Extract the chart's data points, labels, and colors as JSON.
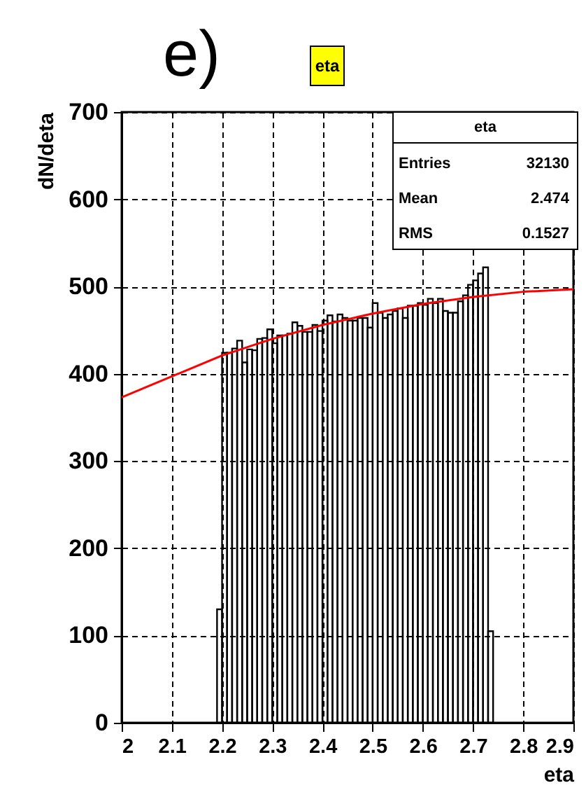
{
  "chart_data": {
    "type": "histogram",
    "title": "eta",
    "xlabel": "eta",
    "ylabel": "dN/deta",
    "annotations": [
      "e)",
      "eta",
      "Entries",
      "32130",
      "Mean",
      "2.474",
      "RMS",
      "0.1527"
    ],
    "xlim": [
      2,
      2.9
    ],
    "ylim": [
      0,
      700
    ],
    "xticks": [
      {
        "value": 2,
        "label": "2"
      },
      2.1,
      2.2,
      2.3,
      2.4,
      2.5,
      2.6,
      2.7,
      2.8,
      2.9
    ],
    "yticks": [
      0,
      100,
      200,
      300,
      400,
      500,
      600,
      700
    ],
    "grid": true,
    "series": [
      {
        "color": "#000000",
        "bins": [
          2.19,
          2.2,
          2.21,
          2.22,
          2.23,
          2.24,
          2.25,
          2.26,
          2.27,
          2.28,
          2.29,
          2.3,
          2.31,
          2.32,
          2.33,
          2.34,
          2.35,
          2.36,
          2.37,
          2.38,
          2.39,
          2.4,
          2.41,
          2.42,
          2.43,
          2.44,
          2.45,
          2.46,
          2.47,
          2.48,
          2.49,
          2.5,
          2.51,
          2.52,
          2.53,
          2.54,
          2.55,
          2.56,
          2.57,
          2.58,
          2.59,
          2.6,
          2.61,
          2.62,
          2.63,
          2.64,
          2.65,
          2.66,
          2.67,
          2.68,
          2.69,
          2.7,
          2.71,
          2.72,
          2.73,
          2.74
        ],
        "values": [
          130,
          424,
          424,
          429,
          438,
          413,
          428,
          427,
          440,
          441,
          451,
          435,
          444,
          444,
          446,
          459,
          455,
          448,
          448,
          456,
          449,
          461,
          467,
          460,
          468,
          464,
          461,
          461,
          464,
          464,
          453,
          481,
          470,
          464,
          468,
          472,
          475,
          464,
          478,
          478,
          481,
          479,
          486,
          481,
          486,
          472,
          470,
          470,
          483,
          490,
          502,
          507,
          515,
          522,
          105
        ]
      },
      {
        "type": "line",
        "color": "#ff0000",
        "x": [
          2.0,
          2.1,
          2.2,
          2.3,
          2.4,
          2.5,
          2.6,
          2.7,
          2.8,
          2.9
        ],
        "values": [
          373,
          397,
          421,
          440,
          456,
          469,
          480,
          488,
          494,
          497
        ]
      }
    ]
  }
}
